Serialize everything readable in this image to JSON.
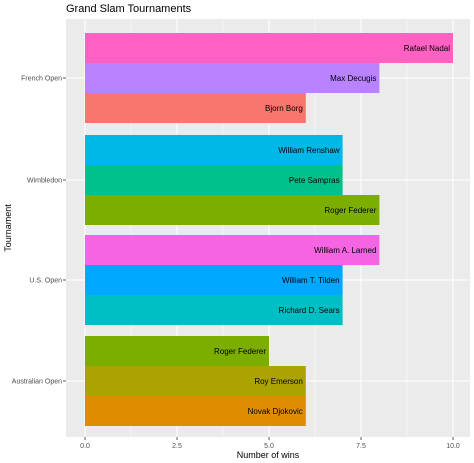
{
  "chart_data": {
    "type": "bar",
    "orientation": "horizontal",
    "title": "Grand Slam Tournaments",
    "xlabel": "Number of wins",
    "ylabel": "Tournament",
    "xlim": [
      0,
      10
    ],
    "x_ticks": [
      {
        "value": 0,
        "label": "0.0"
      },
      {
        "value": 2.5,
        "label": "2.5"
      },
      {
        "value": 5,
        "label": "5.0"
      },
      {
        "value": 7.5,
        "label": "7.5"
      },
      {
        "value": 10,
        "label": "10.0"
      }
    ],
    "grid": true,
    "legend": "none",
    "groups": [
      {
        "tournament": "French Open",
        "bars": [
          {
            "player": "Rafael Nadal",
            "wins": 10,
            "color": "#FF61C3"
          },
          {
            "player": "Max Decugis",
            "wins": 8,
            "color": "#B983FF"
          },
          {
            "player": "Bjorn Borg",
            "wins": 6,
            "color": "#F8766D"
          }
        ]
      },
      {
        "tournament": "Wimbledon",
        "bars": [
          {
            "player": "William Renshaw",
            "wins": 7,
            "color": "#00B8E7"
          },
          {
            "player": "Pete Sampras",
            "wins": 7,
            "color": "#00C08B"
          },
          {
            "player": "Roger Federer",
            "wins": 8,
            "color": "#7CAE00"
          }
        ]
      },
      {
        "tournament": "U.S. Open",
        "bars": [
          {
            "player": "William A. Larned",
            "wins": 8,
            "color": "#F564E3"
          },
          {
            "player": "William T. Tilden",
            "wins": 7,
            "color": "#00A9FF"
          },
          {
            "player": "Richard D. Sears",
            "wins": 7,
            "color": "#00BFC4"
          }
        ]
      },
      {
        "tournament": "Australian Open",
        "bars": [
          {
            "player": "Roger Federer",
            "wins": 5,
            "color": "#7CAE00"
          },
          {
            "player": "Roy Emerson",
            "wins": 6,
            "color": "#ABA300"
          },
          {
            "player": "Novak Djokovic",
            "wins": 6,
            "color": "#DE8C00"
          }
        ]
      }
    ]
  },
  "colors": {
    "panel_background": "#EBEBEB",
    "grid_major": "#FFFFFF",
    "tick_text": "#4D4D4D"
  }
}
